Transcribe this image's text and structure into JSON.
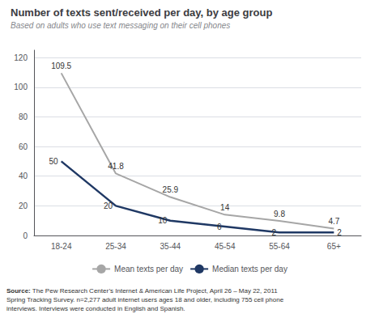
{
  "chart_data": {
    "type": "line",
    "title": "Number of texts sent/received per day, by age group",
    "subtitle": "Based on adults who use text messaging on their cell phones",
    "categories": [
      "18-24",
      "25-34",
      "35-44",
      "45-54",
      "55-64",
      "65+"
    ],
    "series": [
      {
        "name": "Mean texts per day",
        "color": "#a6a6a6",
        "values": [
          109.5,
          41.8,
          25.9,
          14,
          9.8,
          4.7
        ]
      },
      {
        "name": "Median texts per day",
        "color": "#1f3864",
        "values": [
          50,
          20,
          10,
          6,
          2,
          2
        ]
      }
    ],
    "ylim": [
      0,
      125
    ],
    "yticks": [
      0,
      20,
      40,
      60,
      80,
      100,
      120
    ],
    "grid": true,
    "legend": "bottom",
    "data_labels": true,
    "source_label": "Source:",
    "source": [
      "The Pew Research Center’s Internet & American Life Project, April 26 – May 22, 2011",
      "Spring Tracking Survey. n=2,277 adult internet users ages 18 and older, including 755 cell phone",
      "interviews. Interviews were conducted in English and Spanish."
    ]
  }
}
